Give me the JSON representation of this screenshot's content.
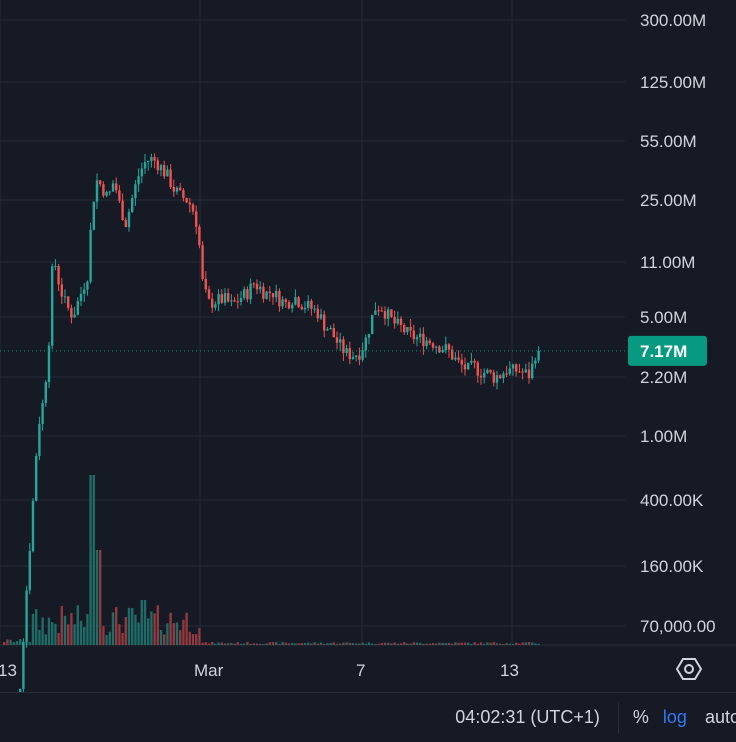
{
  "chart_data": {
    "type": "candlestick",
    "scale": "log",
    "grid": true,
    "y_ticks": [
      "300.00M",
      "125.00M",
      "55.00M",
      "25.00M",
      "11.00M",
      "5.00M",
      "2.20M",
      "1.00M",
      "400.00K",
      "160.00K",
      "70,000.00"
    ],
    "y_tick_values": [
      300000000,
      125000000,
      55000000,
      25000000,
      11000000,
      5000000,
      2200000,
      1000000,
      400000,
      160000,
      70000
    ],
    "x_ticks": [
      "13",
      "Mar",
      "7",
      "13"
    ],
    "last_price_label": "7.17M",
    "last_price_value": 7170000,
    "colors": {
      "up": "#26a69a",
      "down": "#ef5350",
      "background": "#161a25",
      "grid": "#262a36",
      "last_price": "#089981",
      "volume_up": "#1f6b66",
      "volume_down": "#8e3a3f"
    }
  },
  "status_bar": {
    "time": "04:02:31",
    "timezone": "(UTC+1)",
    "percent": "%",
    "log": "log",
    "auto": "auto"
  },
  "icons": {
    "settings": "hexagon-gear-icon"
  }
}
